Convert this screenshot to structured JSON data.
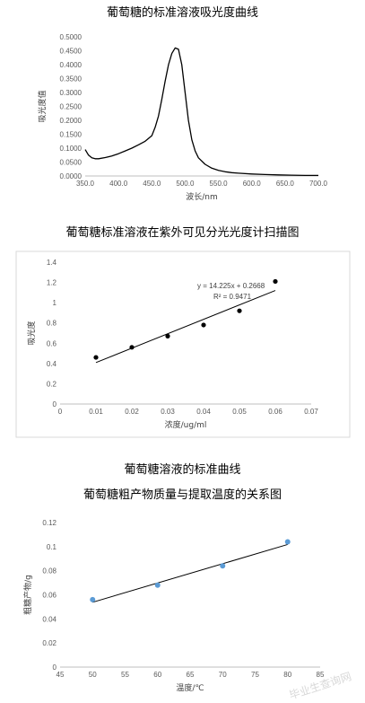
{
  "chart_data": [
    {
      "type": "line",
      "title": "葡萄糖的标准溶液吸光度曲线",
      "xlabel": "波长/nm",
      "ylabel": "吸光度值",
      "xlim": [
        350,
        700
      ],
      "ylim": [
        0,
        0.5
      ],
      "xticks": [
        "350.0",
        "400.0",
        "450.0",
        "500.0",
        "550.0",
        "600.0",
        "650.0",
        "700.0"
      ],
      "yticks": [
        "0.0000",
        "0.0500",
        "0.1000",
        "0.1500",
        "0.2000",
        "0.2500",
        "0.3000",
        "0.3500",
        "0.4000",
        "0.4500",
        "0.5000"
      ],
      "grid": false,
      "x": [
        350,
        355,
        360,
        365,
        370,
        380,
        390,
        400,
        410,
        420,
        430,
        440,
        450,
        455,
        460,
        465,
        470,
        475,
        480,
        485,
        490,
        495,
        500,
        505,
        510,
        515,
        520,
        530,
        540,
        550,
        560,
        570,
        580,
        600,
        620,
        640,
        660,
        680,
        700
      ],
      "y": [
        0.095,
        0.075,
        0.065,
        0.062,
        0.062,
        0.066,
        0.072,
        0.08,
        0.09,
        0.1,
        0.112,
        0.125,
        0.145,
        0.175,
        0.215,
        0.275,
        0.34,
        0.4,
        0.44,
        0.46,
        0.455,
        0.4,
        0.3,
        0.2,
        0.13,
        0.09,
        0.065,
        0.042,
        0.028,
        0.02,
        0.015,
        0.012,
        0.01,
        0.007,
        0.005,
        0.004,
        0.003,
        0.002,
        0.002
      ]
    },
    {
      "type": "scatter",
      "title": "葡萄糖标准溶液在紫外可见分光光度计扫描图",
      "xlabel": "浓度/ug/ml",
      "ylabel": "吸光度",
      "xlim": [
        0,
        0.07
      ],
      "ylim": [
        0,
        1.4
      ],
      "xticks": [
        "0",
        "0.01",
        "0.02",
        "0.03",
        "0.04",
        "0.05",
        "0.06",
        "0.07"
      ],
      "yticks": [
        "0",
        "0.2",
        "0.4",
        "0.6",
        "0.8",
        "1",
        "1.2",
        "1.4"
      ],
      "grid": false,
      "x": [
        0.01,
        0.02,
        0.03,
        0.04,
        0.05,
        0.06
      ],
      "y": [
        0.46,
        0.56,
        0.67,
        0.78,
        0.92,
        1.21
      ],
      "trendline": {
        "slope": 14.225,
        "intercept": 0.2668,
        "x_range": [
          0.01,
          0.06
        ]
      },
      "annotations": [
        "y = 14.225x + 0.2668",
        "R² = 0.9471"
      ],
      "caption": "葡萄糖溶液的标准曲线"
    },
    {
      "type": "scatter",
      "title": "葡萄糖粗产物质量与提取温度的关系图",
      "xlabel": "温度/℃",
      "ylabel": "粗糖产物/g",
      "xlim": [
        45,
        85
      ],
      "ylim": [
        0,
        0.12
      ],
      "xticks": [
        "45",
        "50",
        "55",
        "60",
        "65",
        "70",
        "75",
        "80",
        "85"
      ],
      "yticks": [
        "0",
        "0.02",
        "0.04",
        "0.06",
        "0.08",
        "0.1",
        "0.12"
      ],
      "grid": false,
      "x": [
        50,
        60,
        70,
        80
      ],
      "y": [
        0.056,
        0.068,
        0.084,
        0.104
      ],
      "trendline": {
        "slope": 0.0016,
        "intercept": -0.0262,
        "x_range": [
          50,
          80
        ]
      },
      "point_color": "#5b9bd5"
    }
  ],
  "watermark": "毕业生查询网"
}
